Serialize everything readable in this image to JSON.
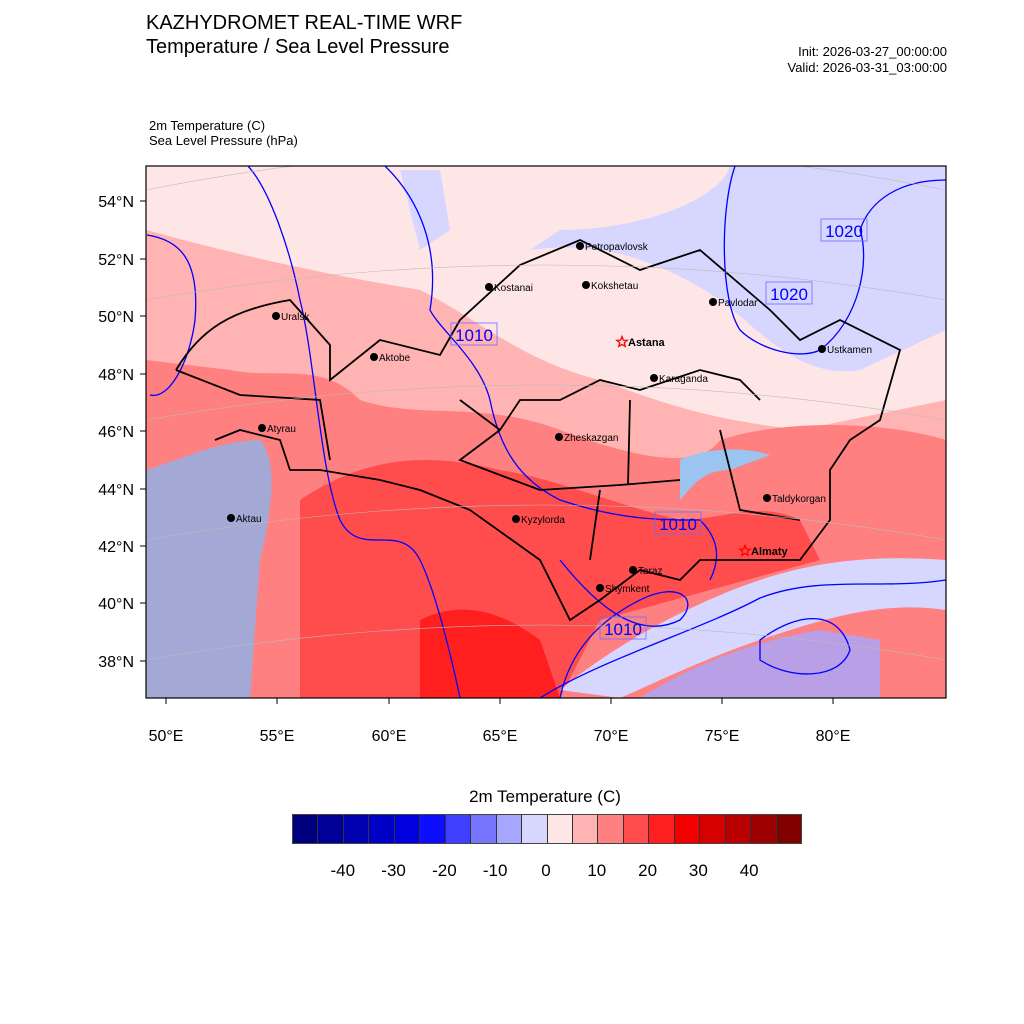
{
  "header": {
    "title": "KAZHYDROMET REAL-TIME WRF",
    "subtitle": "Temperature / Sea Level Pressure",
    "init": "Init: 2026-03-27_00:00:00",
    "valid": "Valid: 2026-03-31_03:00:00",
    "field1": "2m Temperature   (C)",
    "field2": "Sea Level Pressure   (hPa)"
  },
  "map": {
    "lat_labels": [
      "54°N",
      "52°N",
      "50°N",
      "48°N",
      "46°N",
      "44°N",
      "42°N",
      "40°N",
      "38°N"
    ],
    "lon_labels": [
      "50°E",
      "55°E",
      "60°E",
      "65°E",
      "70°E",
      "75°E",
      "80°E"
    ],
    "cities": [
      "Uralsk",
      "Aktobe",
      "Atyrau",
      "Aktau",
      "Kostanai",
      "Kyzylorda",
      "Petropavlovsk",
      "Kokshetau",
      "Pavlodar",
      "Karaganda",
      "Ustkamen",
      "Zheskazgan",
      "Taldykorgan",
      "Taraz",
      "Shymkent"
    ],
    "capitals": [
      "Astana",
      "Almaty"
    ],
    "contour_labels": [
      "1010",
      "1020",
      "1020",
      "1010",
      "1010"
    ]
  },
  "colorbar": {
    "title": "2m Temperature  (C)",
    "labels": [
      "-40",
      "-30",
      "-20",
      "-10",
      "0",
      "10",
      "20",
      "30",
      "40"
    ],
    "colors": [
      "#00007f",
      "#000097",
      "#0000ae",
      "#0000c6",
      "#0000de",
      "#0d0dff",
      "#3f3fff",
      "#7575ff",
      "#a6a6ff",
      "#d6d6ff",
      "#ffe6e6",
      "#ffb3b3",
      "#ff8080",
      "#ff4d4d",
      "#ff1f1f",
      "#f20000",
      "#d60000",
      "#b80000",
      "#9c0000",
      "#800000"
    ]
  }
}
